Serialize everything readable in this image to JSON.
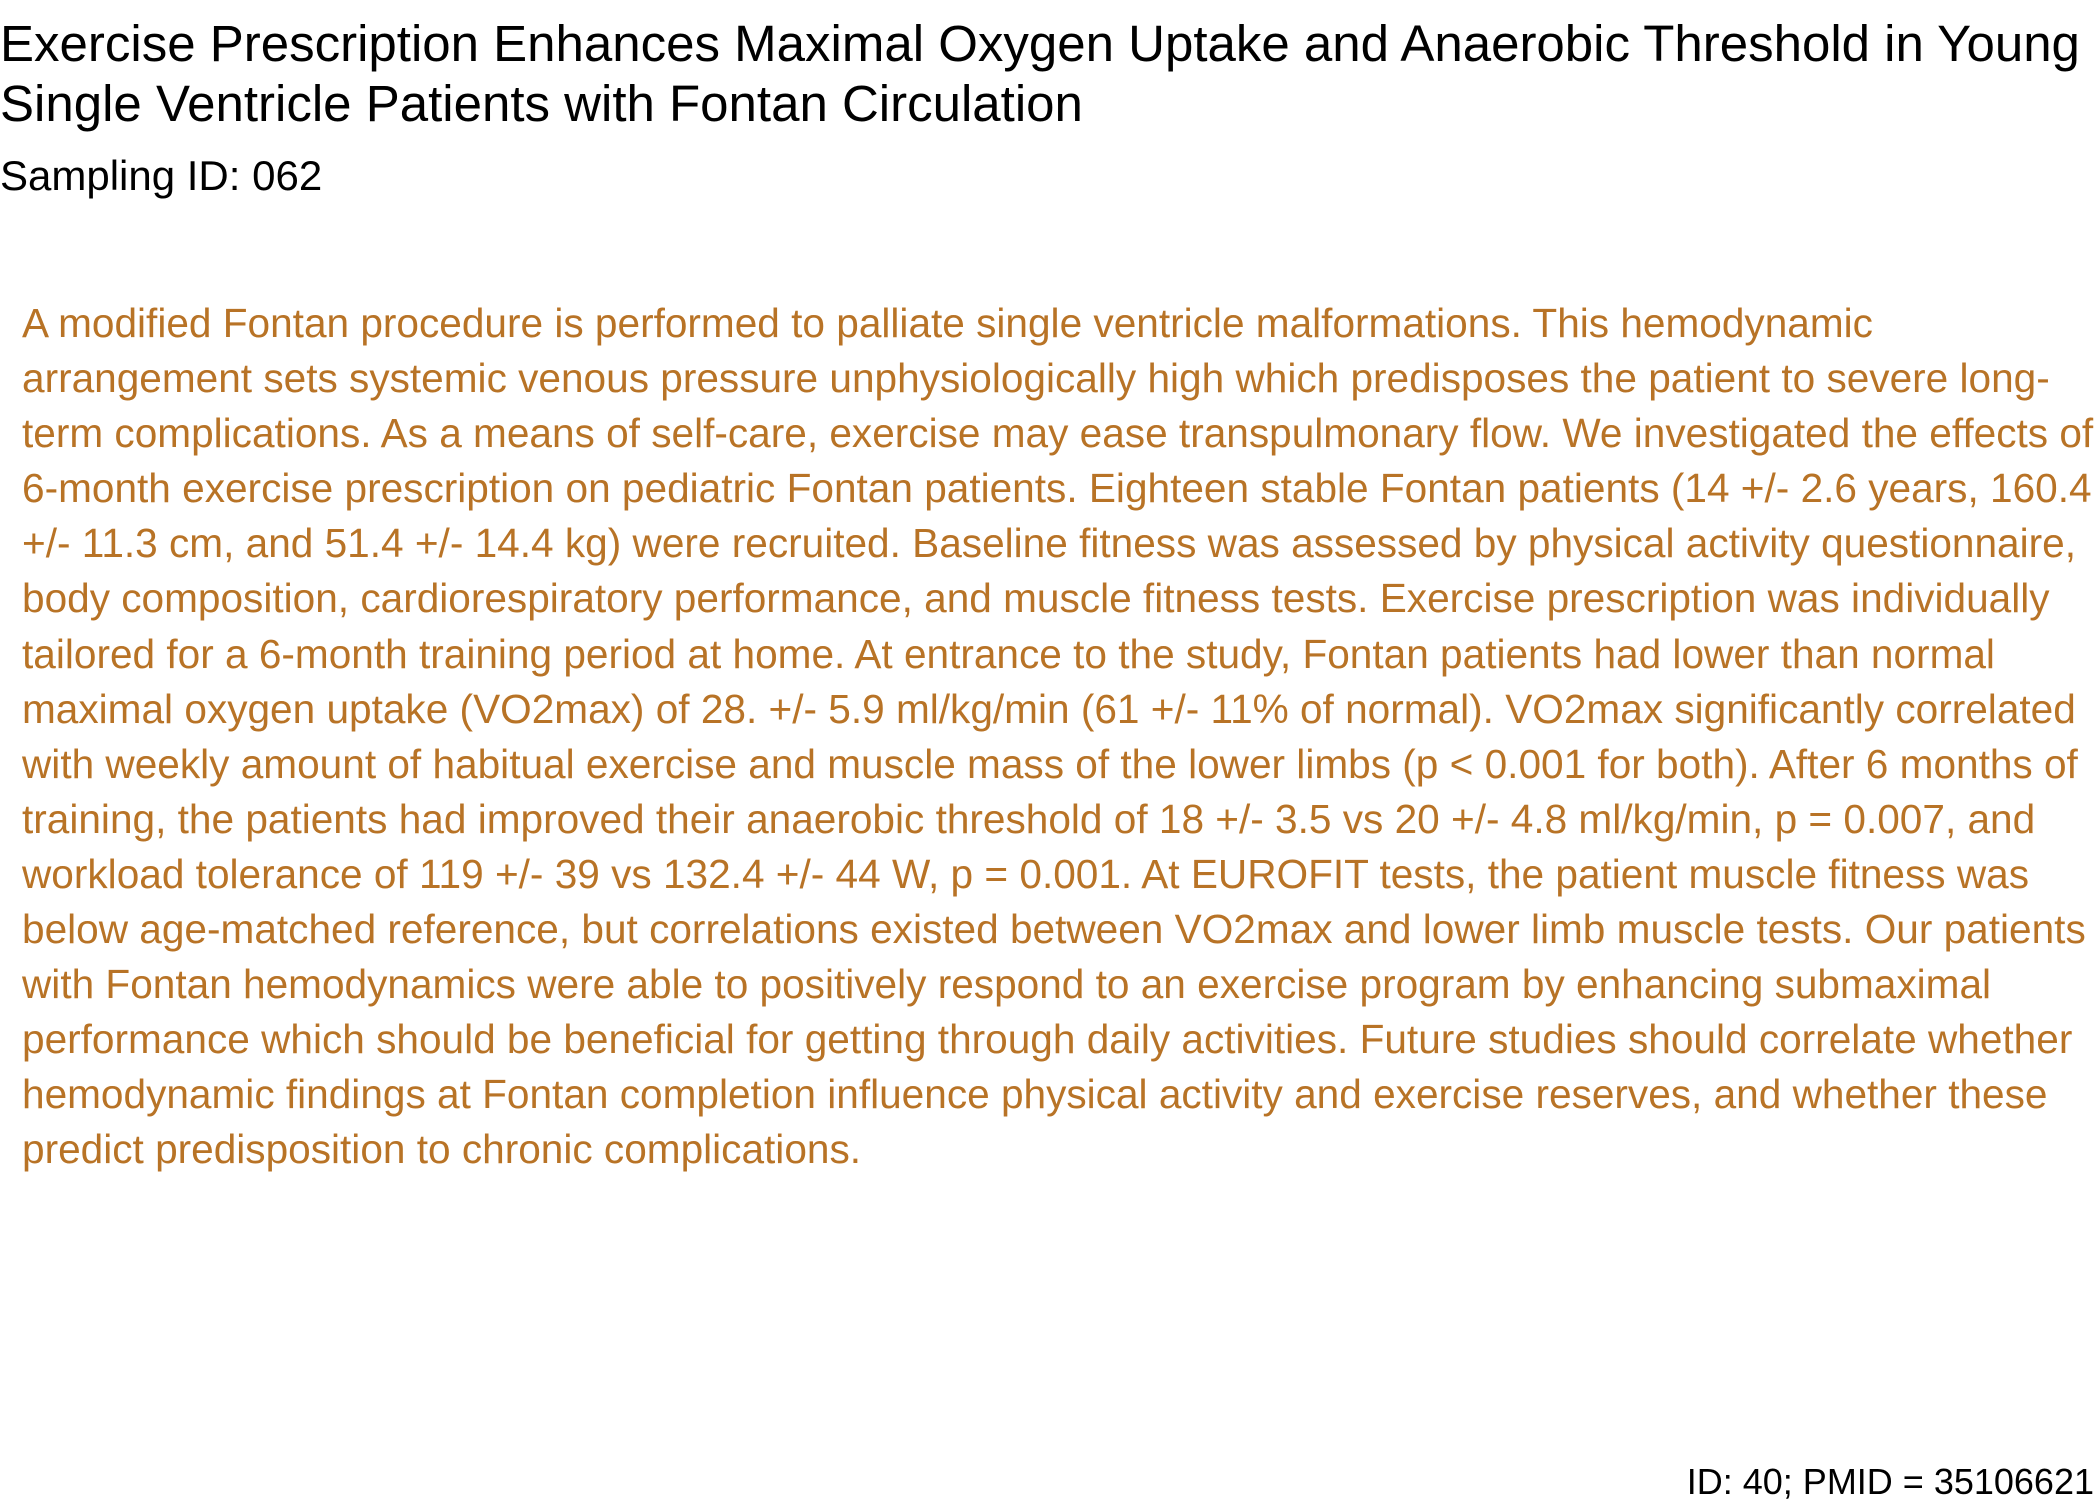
{
  "document": {
    "title": "Exercise Prescription Enhances Maximal Oxygen Uptake and Anaerobic Threshold in Young Single Ventricle Patients with Fontan Circulation",
    "sampling_id": "Sampling ID: 062",
    "abstract": "A modified Fontan procedure is performed to palliate single ventricle malformations. This hemodynamic arrangement sets systemic venous pressure unphysiologically high which predisposes the patient to severe long-term complications. As a means of self-care, exercise may ease transpulmonary flow. We investigated the effects of 6-month exercise prescription on pediatric Fontan patients. Eighteen stable Fontan patients (14 +/- 2.6 years, 160.4 +/- 11.3 cm, and 51.4 +/- 14.4 kg) were recruited. Baseline fitness was assessed by physical activity questionnaire, body composition, cardiorespiratory performance, and muscle fitness tests. Exercise prescription was individually tailored for a 6-month training period at home. At entrance to the study, Fontan patients had lower than normal maximal oxygen uptake (VO2max) of 28. +/- 5.9 ml/kg/min (61 +/- 11% of normal). VO2max significantly correlated with weekly amount of habitual exercise and muscle mass of the lower limbs (p < 0.001 for both). After 6 months of training, the patients had improved their anaerobic threshold of 18 +/- 3.5 vs 20 +/- 4.8 ml/kg/min, p = 0.007, and workload tolerance of 119 +/- 39 vs 132.4 +/- 44 W, p = 0.001. At EUROFIT tests, the patient muscle fitness was below age-matched reference, but correlations existed between VO2max and lower limb muscle tests. Our patients with Fontan hemodynamics were able to positively respond to an exercise program by enhancing submaximal performance which should be beneficial for getting through daily activities. Future studies should correlate whether hemodynamic findings at Fontan completion influence physical activity and exercise reserves, and whether these predict predisposition to chronic complications.",
    "footer": "ID: 40; PMID = 35106621"
  },
  "colors": {
    "title_text": "#000000",
    "abstract_text": "#b87326",
    "background": "#ffffff"
  }
}
